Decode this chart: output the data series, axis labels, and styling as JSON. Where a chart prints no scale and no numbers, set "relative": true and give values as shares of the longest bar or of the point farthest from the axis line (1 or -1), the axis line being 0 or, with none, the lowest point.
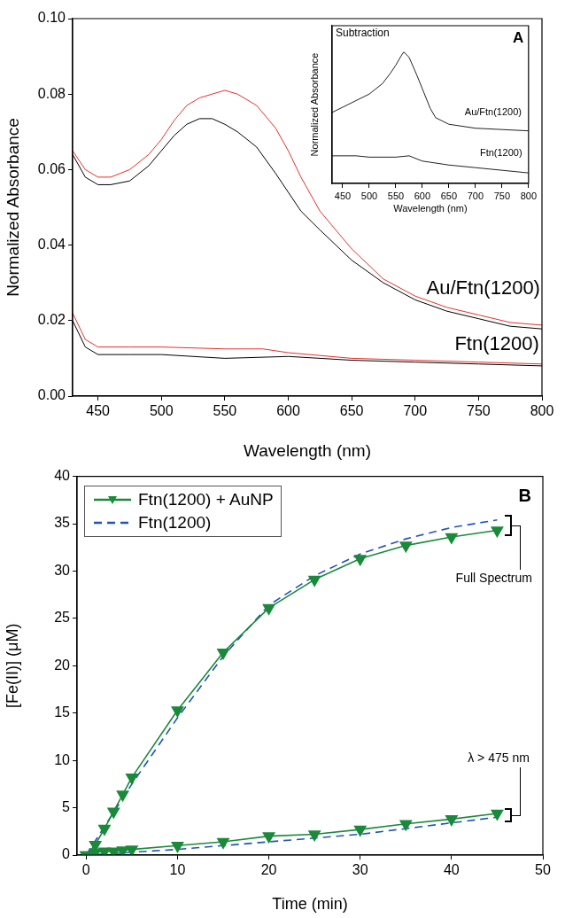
{
  "chart_data": [
    {
      "type": "line",
      "xlabel": "Wavelength (nm)",
      "ylabel": "Normalized Absorbance",
      "xlim": [
        430,
        800
      ],
      "xticks": [
        450,
        500,
        550,
        600,
        650,
        700,
        750,
        800
      ],
      "ylim": [
        0,
        0.1
      ],
      "yticks": [
        {
          "value": 0,
          "label": "0.00"
        },
        {
          "value": 0.02,
          "label": "0.02"
        },
        {
          "value": 0.04,
          "label": "0.04"
        },
        {
          "value": 0.06,
          "label": "0.06"
        },
        {
          "value": 0.08,
          "label": "0.08"
        },
        {
          "value": 0.1,
          "label": "0.10"
        }
      ],
      "marker": "none",
      "grid": false,
      "legend": false,
      "series": [
        {
          "color": "#000000",
          "x": [
            430,
            440,
            450,
            460,
            475,
            490,
            500,
            510,
            520,
            530,
            540,
            550,
            560,
            575,
            590,
            600,
            610,
            625,
            650,
            675,
            700,
            725,
            750,
            775,
            800
          ],
          "values": [
            0.064,
            0.058,
            0.056,
            0.056,
            0.057,
            0.061,
            0.065,
            0.069,
            0.072,
            0.0735,
            0.0735,
            0.072,
            0.07,
            0.066,
            0.059,
            0.054,
            0.049,
            0.044,
            0.036,
            0.03,
            0.0255,
            0.0225,
            0.0205,
            0.0185,
            0.0178
          ]
        },
        {
          "color": "#e8302a",
          "x": [
            430,
            440,
            450,
            460,
            475,
            490,
            500,
            510,
            520,
            530,
            540,
            550,
            560,
            575,
            590,
            600,
            610,
            625,
            650,
            675,
            700,
            725,
            750,
            775,
            800
          ],
          "values": [
            0.065,
            0.06,
            0.058,
            0.058,
            0.06,
            0.064,
            0.068,
            0.073,
            0.077,
            0.079,
            0.08,
            0.081,
            0.08,
            0.077,
            0.071,
            0.065,
            0.058,
            0.049,
            0.039,
            0.031,
            0.0265,
            0.0235,
            0.0215,
            0.0195,
            0.0188
          ]
        },
        {
          "color": "#000000",
          "x": [
            430,
            440,
            450,
            475,
            500,
            550,
            600,
            650,
            700,
            750,
            800
          ],
          "values": [
            0.02,
            0.013,
            0.011,
            0.011,
            0.011,
            0.01,
            0.0105,
            0.0095,
            0.009,
            0.0085,
            0.008
          ]
        },
        {
          "color": "#e8302a",
          "x": [
            430,
            440,
            450,
            475,
            500,
            550,
            580,
            600,
            650,
            700,
            750,
            800
          ],
          "values": [
            0.022,
            0.015,
            0.013,
            0.013,
            0.013,
            0.0125,
            0.0125,
            0.0115,
            0.01,
            0.0095,
            0.009,
            0.0085
          ]
        }
      ],
      "annotations": [
        "Au/Ftn(1200)",
        "Ftn(1200)"
      ]
    },
    {
      "type": "line",
      "title": "Subtraction",
      "xlabel": "Wavelength (nm)",
      "ylabel": "Normalized Absorbance",
      "relative": true,
      "xlim": [
        430,
        800
      ],
      "xticks": [
        450,
        500,
        550,
        600,
        650,
        700,
        750,
        800
      ],
      "marker": "none",
      "legend": false,
      "series": [
        {
          "color": "#222222",
          "x": [
            430,
            450,
            475,
            500,
            525,
            540,
            550,
            560,
            565,
            575,
            590,
            600,
            615,
            625,
            650,
            700,
            750,
            800
          ],
          "values": [
            0.54,
            0.58,
            0.63,
            0.68,
            0.76,
            0.84,
            0.9,
            0.97,
            1.0,
            0.96,
            0.82,
            0.72,
            0.57,
            0.5,
            0.45,
            0.42,
            0.41,
            0.4
          ]
        },
        {
          "color": "#222222",
          "x": [
            430,
            475,
            500,
            550,
            575,
            600,
            650,
            700,
            750,
            800
          ],
          "values": [
            0.21,
            0.21,
            0.2,
            0.2,
            0.21,
            0.17,
            0.14,
            0.12,
            0.1,
            0.08
          ]
        }
      ],
      "annotations": [
        "Au/Ftn(1200)",
        "Ftn(1200)",
        "A"
      ]
    },
    {
      "type": "line",
      "xlabel": "Time (min)",
      "ylabel": "[Fe(II)] (μM)",
      "xlim": [
        -1,
        50
      ],
      "xticks": [
        0,
        10,
        20,
        30,
        40,
        50
      ],
      "ylim": [
        0,
        40
      ],
      "yticks": [
        0,
        5,
        10,
        15,
        20,
        25,
        30,
        35,
        40
      ],
      "grid": false,
      "legend": "top left",
      "series": [
        {
          "name": "Ftn(1200) + AuNP",
          "color": "#1a8a3a",
          "marker": "triangle",
          "line_style": "solid",
          "x": [
            0,
            1,
            2,
            3,
            4,
            5,
            10,
            15,
            20,
            25,
            30,
            35,
            40,
            45
          ],
          "values": [
            0,
            1.1,
            2.8,
            4.6,
            6.4,
            8.2,
            15.3,
            21.4,
            26.1,
            29.1,
            31.3,
            32.7,
            33.6,
            34.3
          ]
        },
        {
          "name": "Ftn(1200)",
          "color": "#2352b8",
          "marker": "none",
          "line_style": "dashed",
          "x": [
            0,
            5,
            10,
            15,
            20,
            25,
            30,
            35,
            40,
            45
          ],
          "values": [
            0,
            7.5,
            14.5,
            21,
            26.4,
            29.5,
            31.8,
            33.4,
            34.6,
            35.4
          ]
        },
        {
          "color": "#1a8a3a",
          "marker": "triangle",
          "line_style": "solid",
          "x": [
            0,
            1,
            2,
            3,
            4,
            5,
            10,
            15,
            20,
            25,
            30,
            35,
            40,
            45
          ],
          "values": [
            0,
            0.3,
            0.4,
            0.4,
            0.5,
            0.6,
            1.0,
            1.4,
            2.0,
            2.2,
            2.7,
            3.3,
            3.8,
            4.4
          ]
        },
        {
          "color": "#2352b8",
          "marker": "none",
          "line_style": "dashed",
          "x": [
            0,
            5,
            10,
            15,
            20,
            25,
            30,
            35,
            40,
            45
          ],
          "values": [
            0,
            0.3,
            0.6,
            1.0,
            1.4,
            1.8,
            2.2,
            2.8,
            3.4,
            4.0
          ]
        }
      ],
      "annotations": [
        "Full Spectrum",
        "λ > 475 nm",
        "B"
      ]
    }
  ]
}
